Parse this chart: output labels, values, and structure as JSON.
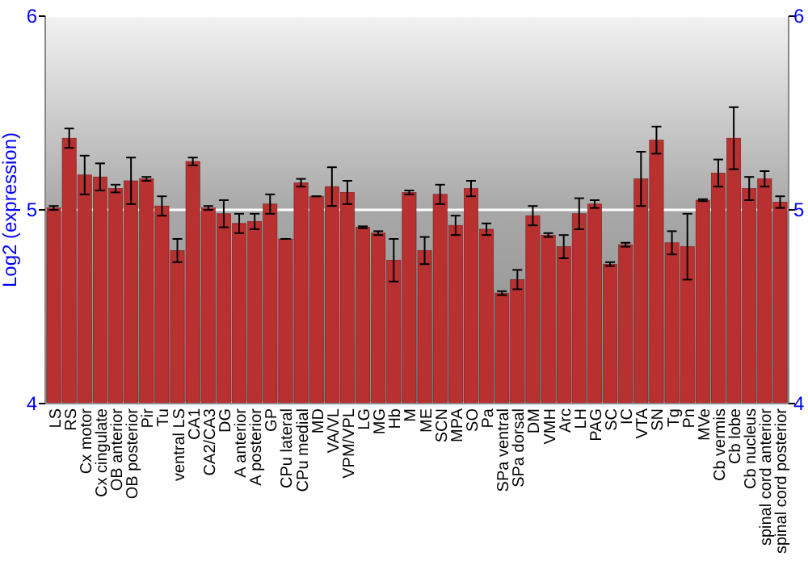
{
  "chart_data": {
    "type": "bar",
    "ylabel": "Log2 (expression)",
    "categories": [
      "LS",
      "RS",
      "Cx motor",
      "Cx cingulate",
      "OB anterior",
      "OB posterior",
      "Pir",
      "Tu",
      "ventral LS",
      "CA1",
      "CA2/CA3",
      "DG",
      "A anterior",
      "A posterior",
      "GP",
      "CPu lateral",
      "CPu medial",
      "MD",
      "VA/VL",
      "VPM/VPL",
      "LG",
      "MG",
      "Hb",
      "M",
      "ME",
      "SCN",
      "MPA",
      "SO",
      "Pa",
      "SPa ventral",
      "SPa dorsal",
      "DM",
      "VMH",
      "Arc",
      "LH",
      "PAG",
      "SC",
      "IC",
      "VTA",
      "SN",
      "Tg",
      "Pn",
      "MVe",
      "Cb vermis",
      "Cb lobe",
      "Cb nucleus",
      "spinal cord anterior",
      "spinal cord posterior"
    ],
    "values": [
      5.01,
      5.37,
      5.18,
      5.17,
      5.11,
      5.15,
      5.16,
      5.02,
      4.79,
      5.25,
      5.01,
      4.98,
      4.93,
      4.94,
      5.03,
      4.85,
      5.14,
      5.07,
      5.12,
      5.09,
      4.91,
      4.88,
      4.74,
      5.09,
      4.79,
      5.08,
      4.92,
      5.11,
      4.9,
      4.57,
      4.64,
      4.97,
      4.87,
      4.81,
      4.98,
      5.03,
      4.72,
      4.82,
      5.16,
      5.36,
      4.83,
      4.81,
      5.05,
      5.19,
      5.37,
      5.11,
      5.16,
      5.04
    ],
    "errors": [
      0.01,
      0.05,
      0.1,
      0.07,
      0.02,
      0.12,
      0.01,
      0.05,
      0.06,
      0.02,
      0.01,
      0.07,
      0.05,
      0.04,
      0.05,
      0,
      0.02,
      0,
      0.1,
      0.06,
      0.005,
      0.01,
      0.11,
      0.01,
      0.07,
      0.05,
      0.05,
      0.04,
      0.03,
      0.01,
      0.05,
      0.05,
      0.01,
      0.06,
      0.08,
      0.02,
      0.01,
      0.01,
      0.14,
      0.07,
      0.06,
      0.17,
      0.005,
      0.07,
      0.16,
      0.06,
      0.04,
      0.03
    ],
    "color": "#b83030",
    "ylim": [
      4,
      6
    ],
    "yticks": [
      4,
      5,
      6
    ],
    "y2lim": [
      4,
      6
    ],
    "y2ticks": [
      4,
      5,
      6
    ],
    "grid": "y"
  }
}
